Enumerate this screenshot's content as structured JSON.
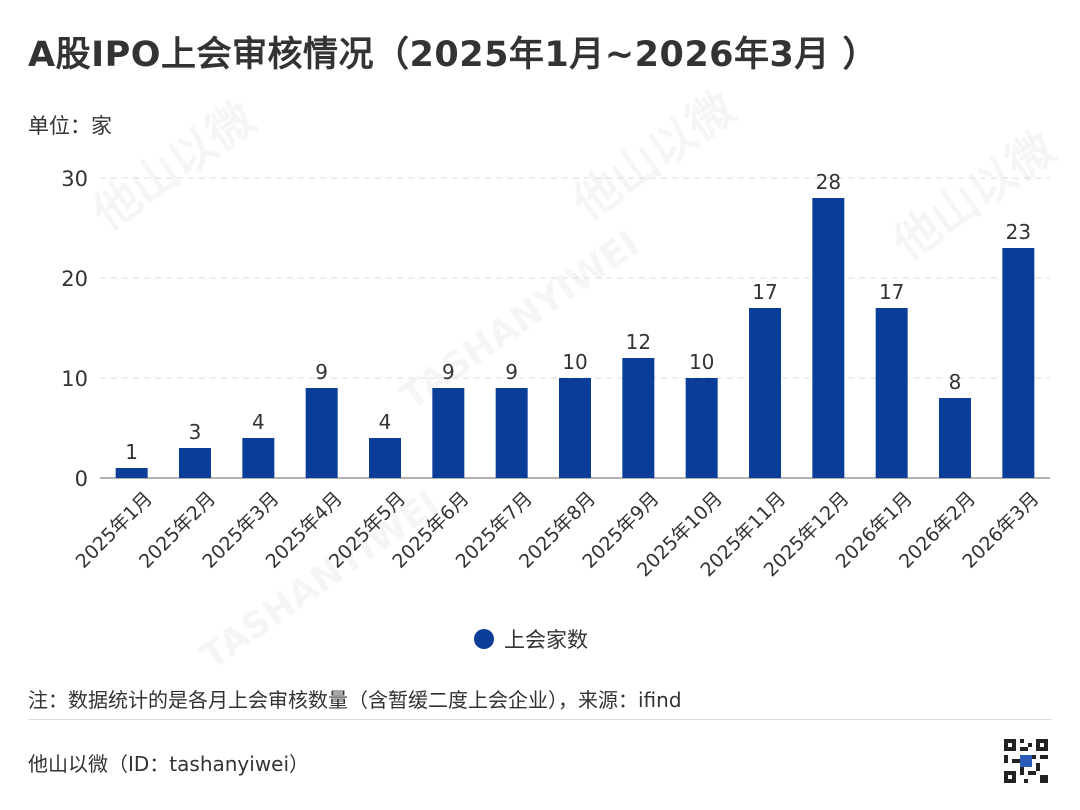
{
  "header": {
    "title": "A股IPO上会审核情况（2025年1月~2026年3月 ）",
    "unit": "单位：家"
  },
  "colors": {
    "bar": "#0A3D97",
    "grid": "#dddddd",
    "axis": "#999999",
    "text": "#333333"
  },
  "chart_data": {
    "type": "bar",
    "categories": [
      "2025年1月",
      "2025年2月",
      "2025年3月",
      "2025年4月",
      "2025年5月",
      "2025年6月",
      "2025年7月",
      "2025年8月",
      "2025年9月",
      "2025年10月",
      "2025年11月",
      "2025年12月",
      "2026年1月",
      "2026年2月",
      "2026年3月"
    ],
    "series": [
      {
        "name": "上会家数",
        "values": [
          1,
          3,
          4,
          9,
          4,
          9,
          9,
          10,
          12,
          10,
          17,
          28,
          17,
          8,
          23
        ]
      }
    ],
    "ylim": [
      0,
      30
    ],
    "yticks": [
      0,
      10,
      20,
      30
    ],
    "grid": true,
    "legend": "bottom"
  },
  "footer": {
    "note": "注：数据统计的是各月上会审核数量（含暂缓二度上会企业），来源：ifind",
    "brand": "他山以微（ID：tashanyiwei）"
  },
  "watermark": {
    "text": "他山以微",
    "latin": "TASHANYIWEI"
  }
}
